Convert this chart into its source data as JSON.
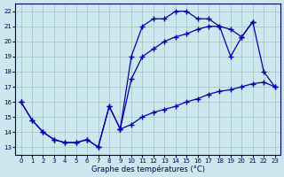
{
  "xlabel": "Graphe des températures (°C)",
  "bg_color": "#cce8ee",
  "grid_color": "#aacccc",
  "line_color": "#0000aa",
  "xlim": [
    -0.5,
    23.5
  ],
  "ylim": [
    12.5,
    22.5
  ],
  "yticks": [
    13,
    14,
    15,
    16,
    17,
    18,
    19,
    20,
    21,
    22
  ],
  "xticks": [
    0,
    1,
    2,
    3,
    4,
    5,
    6,
    7,
    8,
    9,
    10,
    11,
    12,
    13,
    14,
    15,
    16,
    17,
    18,
    19,
    20,
    21,
    22,
    23
  ],
  "line1_x": [
    0,
    1,
    2,
    3,
    4,
    5,
    6,
    7,
    8,
    9,
    10,
    11,
    12,
    13,
    14,
    15,
    16,
    17,
    18,
    19,
    20,
    21,
    22,
    23
  ],
  "line1_y": [
    16.0,
    14.8,
    14.0,
    13.5,
    13.3,
    13.3,
    13.5,
    13.0,
    15.7,
    14.2,
    14.5,
    15.0,
    15.3,
    15.5,
    15.7,
    16.0,
    16.2,
    16.5,
    16.7,
    16.8,
    17.0,
    17.2,
    17.3,
    17.0
  ],
  "line2_x": [
    0,
    1,
    2,
    3,
    4,
    5,
    6,
    7,
    8,
    9,
    10,
    11,
    12,
    13,
    14,
    15,
    16,
    17,
    18,
    19,
    20,
    21
  ],
  "line2_y": [
    16.0,
    14.8,
    14.0,
    13.5,
    13.3,
    13.3,
    13.5,
    13.0,
    15.7,
    14.2,
    19.0,
    21.0,
    21.5,
    21.5,
    22.0,
    22.0,
    21.5,
    21.5,
    21.0,
    20.8,
    20.3,
    21.3
  ],
  "line3_x": [
    9,
    10,
    11,
    12,
    13,
    14,
    15,
    16,
    17,
    18,
    19,
    20,
    21,
    22,
    23
  ],
  "line3_y": [
    14.2,
    17.5,
    19.0,
    19.5,
    20.0,
    20.3,
    20.5,
    20.8,
    21.0,
    21.0,
    19.0,
    20.3,
    21.3,
    18.0,
    17.0
  ]
}
